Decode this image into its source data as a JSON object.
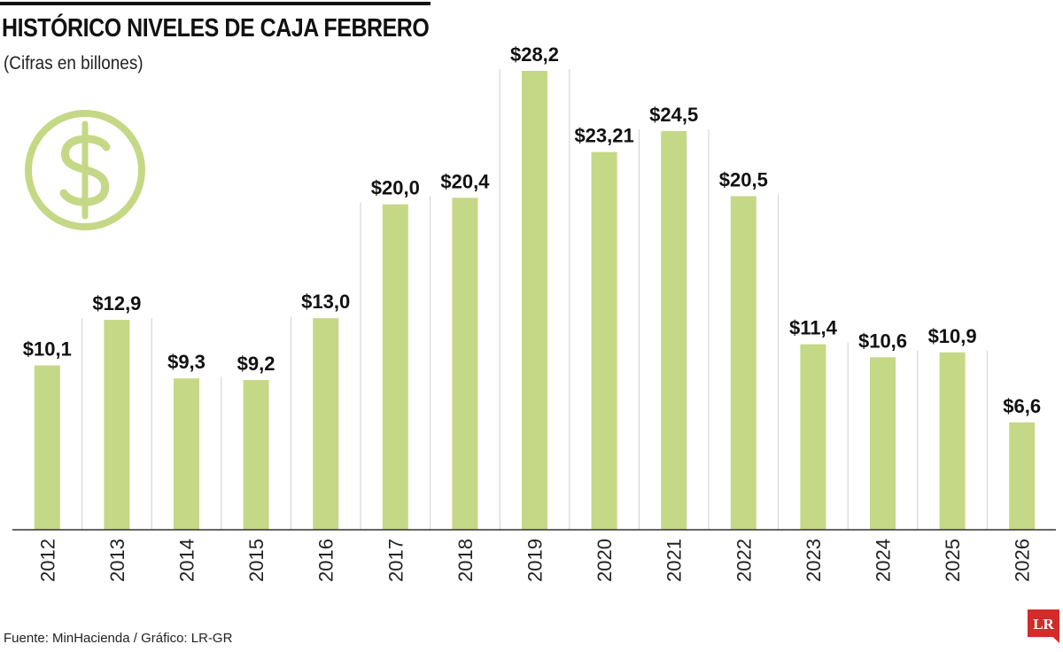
{
  "chart_data": {
    "type": "bar",
    "title": "HISTÓRICO NIVELES DE CAJA FEBRERO",
    "subtitle": "(Cifras en billones)",
    "categories": [
      "2012",
      "2013",
      "2014",
      "2015",
      "2016",
      "2017",
      "2018",
      "2019",
      "2020",
      "2021",
      "2022",
      "2023",
      "2024",
      "2025",
      "2026"
    ],
    "values": [
      10.1,
      12.9,
      9.3,
      9.2,
      13.0,
      20.0,
      20.4,
      28.2,
      23.21,
      24.5,
      20.5,
      11.4,
      10.6,
      10.9,
      6.6
    ],
    "data_labels": [
      "$10,1",
      "$12,9",
      "$9,3",
      "$9,2",
      "$13,0",
      "$20,0",
      "$20,4",
      "$28,2",
      "$23,21",
      "$24,5",
      "$20,5",
      "$11,4",
      "$10,6",
      "$10,9",
      "$6,6"
    ],
    "ylim": [
      0,
      28.2
    ],
    "bar_color": "#c5d886",
    "grid": false,
    "xlabel": "",
    "ylabel": ""
  },
  "icon": {
    "name": "dollar-icon",
    "color": "#c5d886"
  },
  "footer": {
    "source": "Fuente: MinHacienda / Gráfico: LR-GR",
    "logo_text": "LR",
    "logo_color": "#d42a2a"
  }
}
